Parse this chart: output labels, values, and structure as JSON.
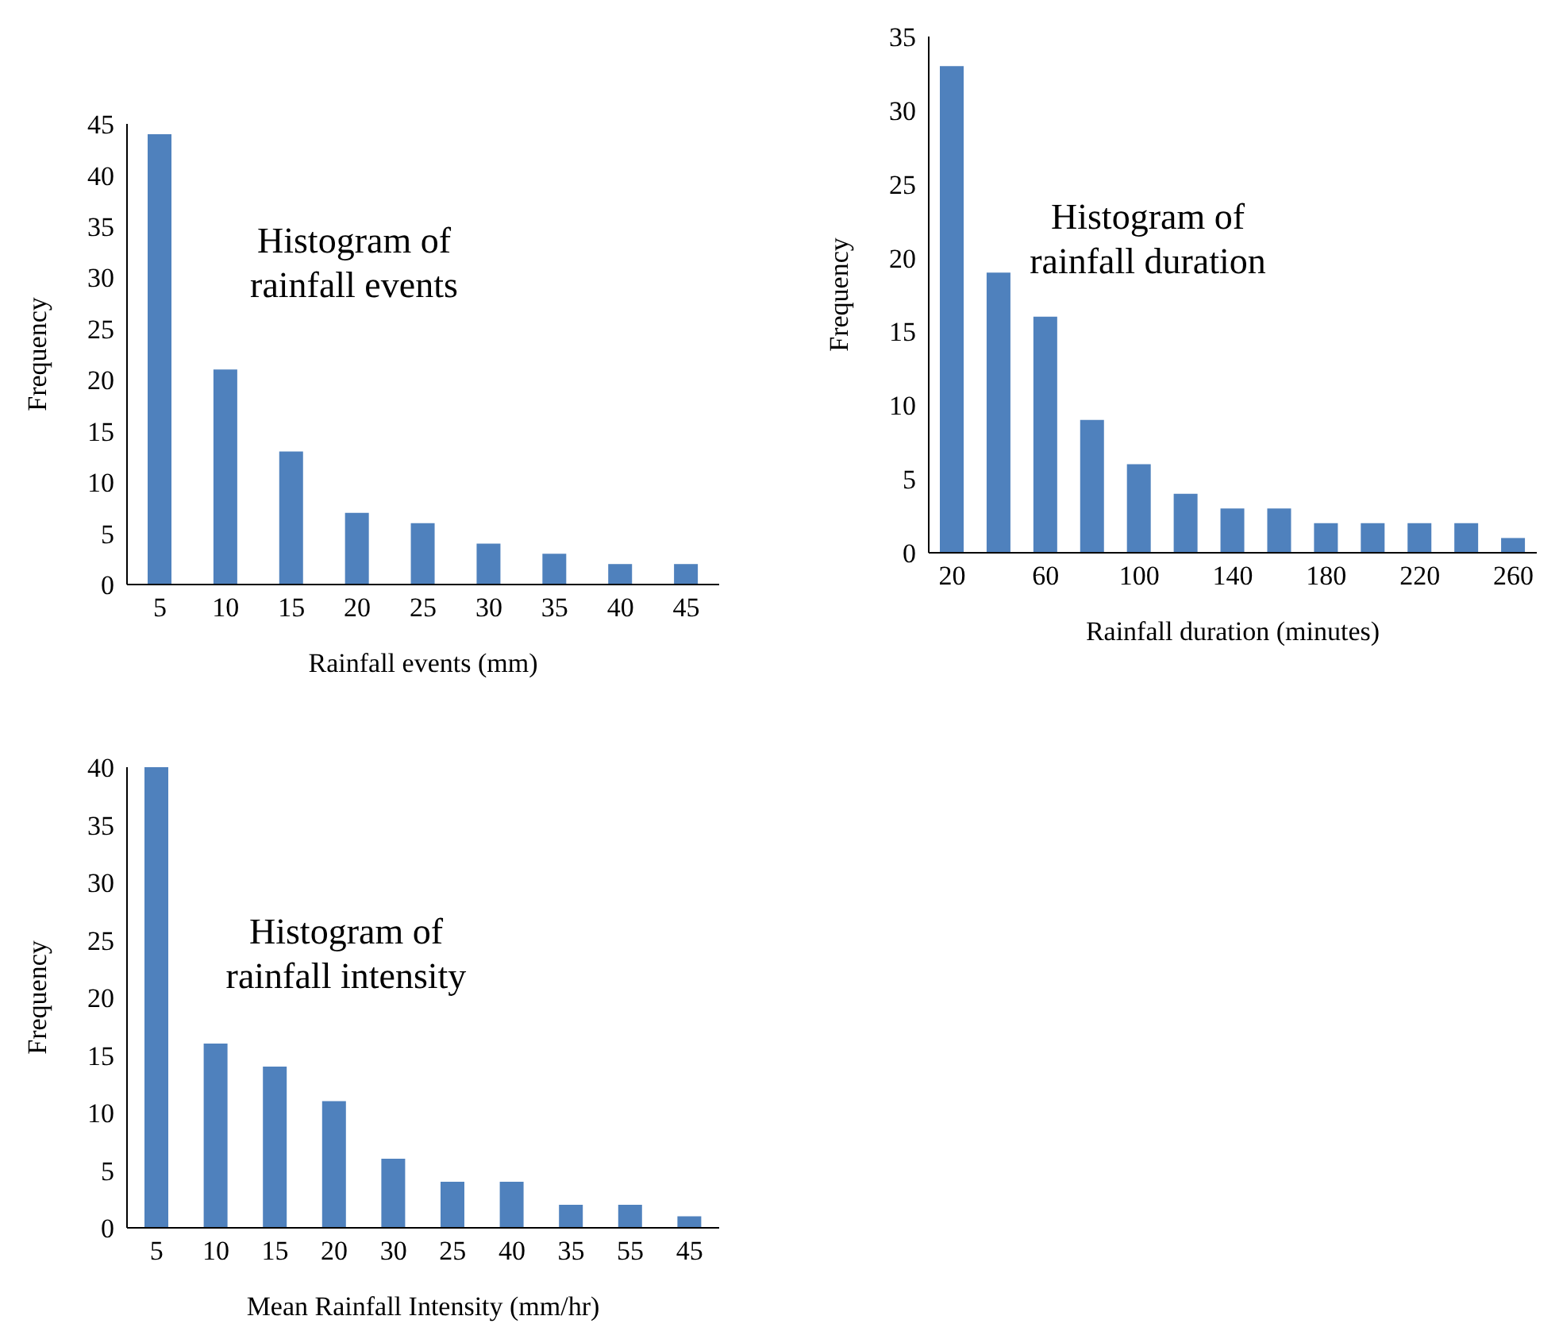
{
  "chart_data": [
    {
      "type": "bar",
      "title": "Histogram of rainfall events",
      "xlabel": "Rainfall  events (mm)",
      "ylabel": "Frequency",
      "categories": [
        "5",
        "10",
        "15",
        "20",
        "25",
        "30",
        "35",
        "40",
        "45"
      ],
      "values": [
        44,
        21,
        13,
        7,
        6,
        4,
        3,
        2,
        2
      ],
      "color": "#4f81bd",
      "ylim": [
        0,
        45
      ],
      "yticks": [
        0,
        5,
        10,
        15,
        20,
        25,
        30,
        35,
        40,
        45
      ],
      "grid": false,
      "legend": false
    },
    {
      "type": "bar",
      "title": "Histogram of rainfall duration",
      "xlabel": "Rainfall duration (minutes)",
      "ylabel": "Frequency",
      "categories": [
        "20",
        null,
        "60",
        null,
        "100",
        null,
        "140",
        null,
        "180",
        null,
        "220",
        null,
        "260"
      ],
      "values": [
        33,
        19,
        16,
        9,
        6,
        4,
        3,
        3,
        2,
        2,
        2,
        2,
        1
      ],
      "color": "#4f81bd",
      "ylim": [
        0,
        35
      ],
      "yticks": [
        0,
        5,
        10,
        15,
        20,
        25,
        30,
        35
      ],
      "grid": false,
      "legend": false
    },
    {
      "type": "bar",
      "title": "Histogram of rainfall intensity",
      "xlabel": "Mean Rainfall Intensity (mm/hr)",
      "ylabel": "Frequency",
      "categories": [
        "5",
        "10",
        "15",
        "20",
        "30",
        "25",
        "40",
        "35",
        "55",
        "45"
      ],
      "values": [
        40,
        16,
        14,
        11,
        6,
        4,
        4,
        2,
        2,
        1
      ],
      "color": "#4f81bd",
      "ylim": [
        0,
        40
      ],
      "yticks": [
        0,
        5,
        10,
        15,
        20,
        25,
        30,
        35,
        40
      ],
      "grid": false,
      "legend": false
    }
  ]
}
